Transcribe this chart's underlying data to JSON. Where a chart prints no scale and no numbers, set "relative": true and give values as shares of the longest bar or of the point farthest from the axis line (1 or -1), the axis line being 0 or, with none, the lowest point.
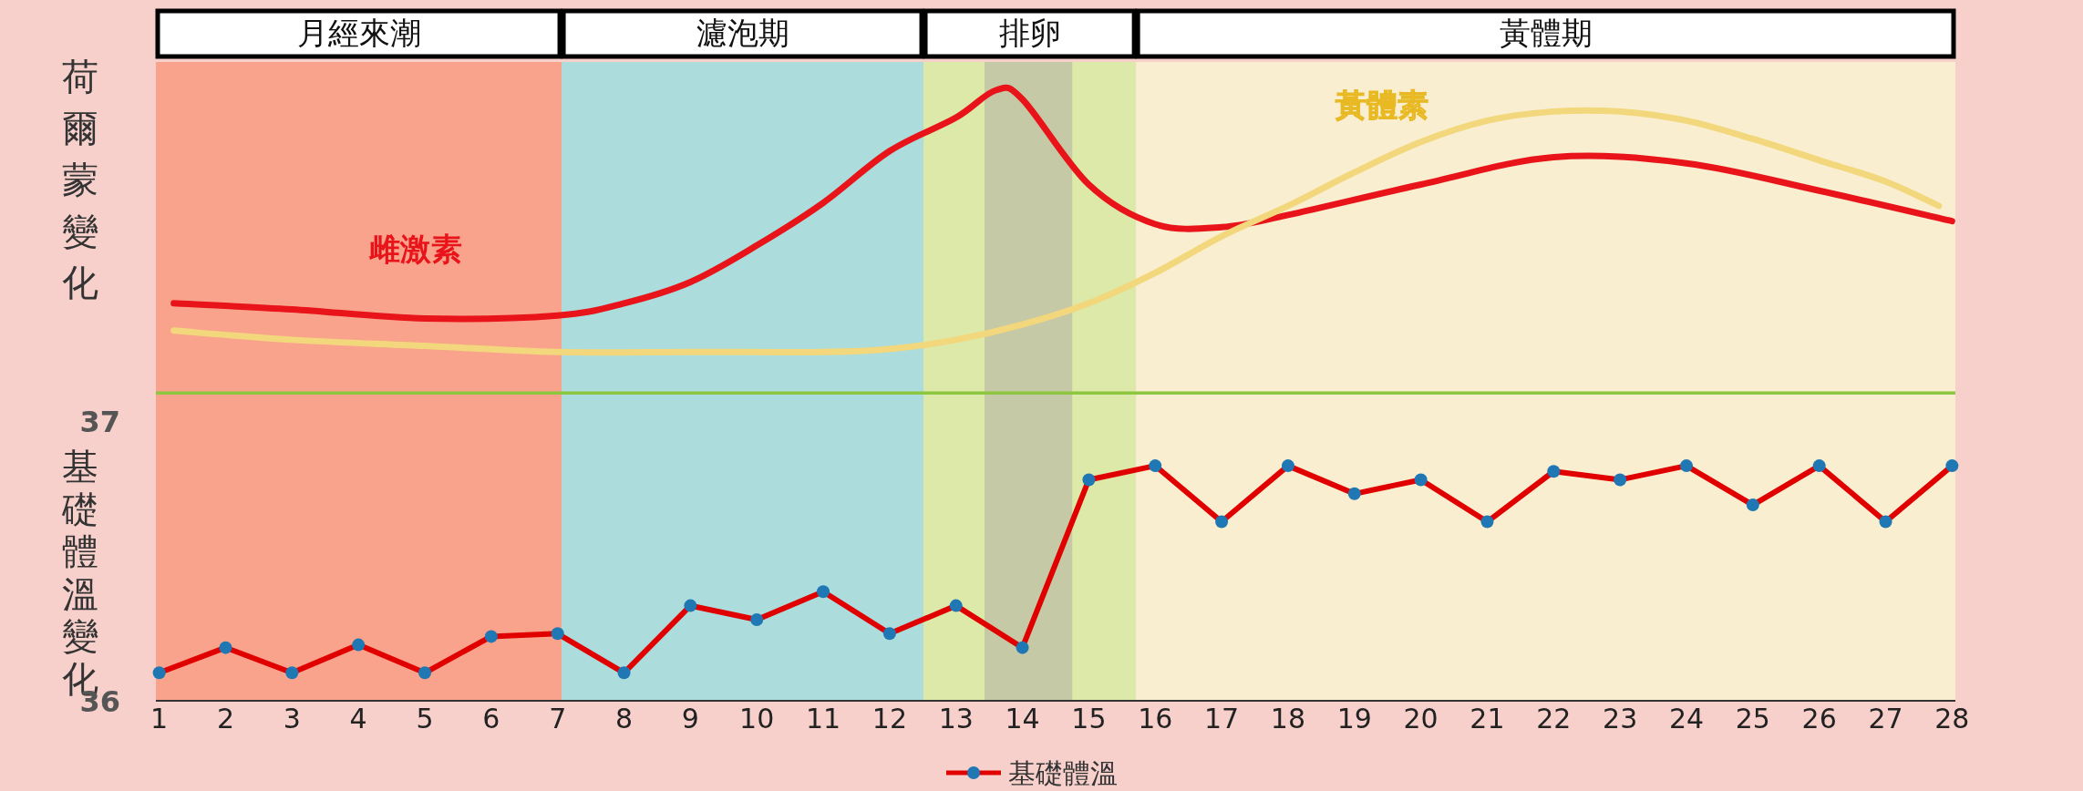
{
  "chart_data": [
    {
      "type": "line",
      "relative": true,
      "ylabel": "荷爾蒙變化",
      "xlim": [
        0.95,
        28.05
      ],
      "bands": [
        {
          "axis": "x",
          "from": 0.95,
          "to": 7.06,
          "label": "月經來潮",
          "color": "#f9a38c"
        },
        {
          "axis": "x",
          "from": 7.06,
          "to": 12.51,
          "label": "濾泡期",
          "color": "#acdcdc"
        },
        {
          "axis": "x",
          "from": 12.51,
          "to": 15.71,
          "label": "排卵",
          "color": "#dde9a8"
        },
        {
          "axis": "x",
          "from": 13.43,
          "to": 14.75,
          "color": "#c6c9a6"
        },
        {
          "axis": "x",
          "from": 15.71,
          "to": 28.05,
          "label": "黃體期",
          "color": "#f9efd0"
        }
      ],
      "series": [
        {
          "name": "雌激素",
          "color": "#e8141a",
          "x": [
            1.22,
            3,
            5,
            7,
            8,
            9,
            10,
            11,
            12,
            13,
            13.6,
            14,
            15,
            16,
            17,
            18,
            20,
            22,
            24,
            26,
            28
          ],
          "values": [
            0.3,
            0.28,
            0.25,
            0.26,
            0.3,
            0.37,
            0.49,
            0.63,
            0.8,
            0.91,
            1,
            0.97,
            0.69,
            0.56,
            0.55,
            0.59,
            0.69,
            0.78,
            0.76,
            0.67,
            0.57
          ]
        },
        {
          "name": "黃體素",
          "color": "#f2d77c",
          "x": [
            1.22,
            3,
            5,
            7,
            9,
            11,
            12,
            13,
            14,
            15,
            16,
            17,
            18,
            19,
            20,
            21,
            22,
            23,
            24,
            25,
            26,
            27,
            27.8
          ],
          "values": [
            0.21,
            0.18,
            0.16,
            0.14,
            0.14,
            0.14,
            0.15,
            0.18,
            0.23,
            0.3,
            0.4,
            0.52,
            0.62,
            0.73,
            0.83,
            0.9,
            0.93,
            0.93,
            0.9,
            0.84,
            0.77,
            0.7,
            0.62
          ]
        }
      ]
    },
    {
      "type": "line",
      "ylabel": "基礎體溫變化",
      "xlim": [
        0.95,
        28.05
      ],
      "ylim": [
        36,
        37
      ],
      "yticks": [
        36,
        37
      ],
      "xticks": [
        1,
        2,
        3,
        4,
        5,
        6,
        7,
        8,
        9,
        10,
        11,
        12,
        13,
        14,
        15,
        16,
        17,
        18,
        19,
        20,
        21,
        22,
        23,
        24,
        25,
        26,
        27,
        28
      ],
      "marker": "circle",
      "legend": "bottom",
      "bands": [
        {
          "axis": "x",
          "from": 0.95,
          "to": 7.06,
          "color": "#f9a38c"
        },
        {
          "axis": "x",
          "from": 7.06,
          "to": 12.51,
          "color": "#acdcdc"
        },
        {
          "axis": "x",
          "from": 12.51,
          "to": 15.71,
          "color": "#dde9a8"
        },
        {
          "axis": "x",
          "from": 13.43,
          "to": 14.75,
          "color": "#c6c9a6"
        },
        {
          "axis": "x",
          "from": 15.71,
          "to": 28.05,
          "color": "#f9efd0"
        }
      ],
      "series": [
        {
          "name": "基礎體溫",
          "color": "#e00000",
          "x": [
            1,
            2,
            3,
            4,
            5,
            6,
            7,
            8,
            9,
            10,
            11,
            12,
            13,
            14,
            15,
            16,
            17,
            18,
            19,
            20,
            21,
            22,
            23,
            24,
            25,
            26,
            27,
            28
          ],
          "values": [
            36.1,
            36.19,
            36.1,
            36.2,
            36.1,
            36.23,
            36.24,
            36.1,
            36.34,
            36.29,
            36.39,
            36.24,
            36.34,
            36.19,
            36.79,
            36.84,
            36.64,
            36.84,
            36.74,
            36.79,
            36.64,
            36.82,
            36.79,
            36.84,
            36.7,
            36.84,
            36.64,
            36.84
          ],
          "colors": [
            "#1f78b4",
            "#1f78b4",
            "#1f78b4",
            "#1f78b4",
            "#1f78b4",
            "#1f78b4",
            "#1f78b4",
            "#1f78b4",
            "#1f78b4",
            "#1f78b4",
            "#1f78b4",
            "#1f78b4",
            "#1f78b4",
            "#1f78b4",
            "#1f78b4",
            "#1f78b4",
            "#1f78b4",
            "#1f78b4",
            "#1f78b4",
            "#1f78b4",
            "#1f78b4",
            "#1f78b4",
            "#1f78b4",
            "#1f78b4",
            "#1f78b4",
            "#1f78b4",
            "#1f78b4",
            "#1f78b4"
          ]
        }
      ]
    }
  ]
}
